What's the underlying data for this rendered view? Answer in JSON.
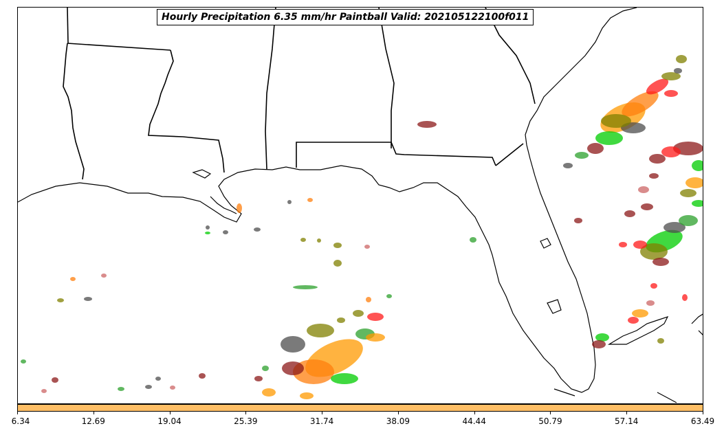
{
  "title": "Hourly Precipitation 6.35 mm/hr Paintball Valid: 202105122100f011",
  "colorbar": {
    "color": "#ffbf66",
    "ticks": [
      "6.34",
      "12.69",
      "19.04",
      "25.39",
      "31.74",
      "38.09",
      "44.44",
      "50.79",
      "57.14",
      "63.49"
    ]
  },
  "colors": {
    "border": "#000000",
    "land": "#ffffff",
    "paintball": [
      "#ff9900",
      "#ff7f0e",
      "#00cc00",
      "#2ca02c",
      "#8c1a1a",
      "#ff1a1a",
      "#808000",
      "#4d4d4d",
      "#cc6666",
      "#e6a0a0"
    ]
  },
  "map": {
    "features": [
      "state-borders",
      "coastline",
      "precipitation-paintball"
    ],
    "region": "Southeastern United States and Gulf of Mexico"
  }
}
